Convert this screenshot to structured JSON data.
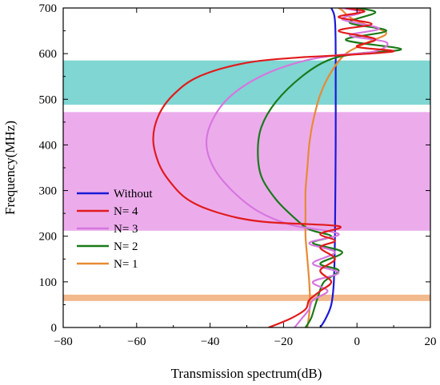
{
  "chart_data": {
    "type": "line",
    "xlabel": "Transmission spectrum(dB)",
    "ylabel": "Frequency(MHz)",
    "xlim": [
      -80,
      20
    ],
    "ylim": [
      0,
      700
    ],
    "xticks": [
      -80,
      -60,
      -40,
      -20,
      0,
      20
    ],
    "yticks": [
      0,
      100,
      200,
      300,
      400,
      500,
      600,
      700
    ],
    "grid": false,
    "legend_position": "middle-left",
    "bands": [
      {
        "y0": 488,
        "y1": 585,
        "color": "#7fd6d3"
      },
      {
        "y0": 212,
        "y1": 472,
        "color": "#ecacec"
      },
      {
        "y0": 58,
        "y1": 72,
        "color": "#f2b98c"
      }
    ],
    "series": [
      {
        "name": "Without",
        "color": "#1a1ad6",
        "points": [
          [
            -10,
            0
          ],
          [
            -8.5,
            20
          ],
          [
            -7,
            50
          ],
          [
            -6.3,
            100
          ],
          [
            -6,
            200
          ],
          [
            -5.8,
            400
          ],
          [
            -5.8,
            600
          ],
          [
            -5.9,
            660
          ],
          [
            -6.2,
            685
          ],
          [
            -7,
            700
          ]
        ]
      },
      {
        "name": "N= 4",
        "color": "#e11b1b",
        "points": [
          [
            -24,
            0
          ],
          [
            -18,
            20
          ],
          [
            -14,
            40
          ],
          [
            -13,
            60
          ],
          [
            -10,
            80
          ],
          [
            -7,
            100
          ],
          [
            -10,
            125
          ],
          [
            -6,
            150
          ],
          [
            -10,
            175
          ],
          [
            -6,
            190
          ],
          [
            -10,
            205
          ],
          [
            -5,
            222
          ],
          [
            -26,
            232
          ],
          [
            -38,
            252
          ],
          [
            -46,
            280
          ],
          [
            -51,
            320
          ],
          [
            -54,
            360
          ],
          [
            -55.5,
            413
          ],
          [
            -54,
            465
          ],
          [
            -50,
            510
          ],
          [
            -43,
            550
          ],
          [
            -30,
            580
          ],
          [
            -15,
            592
          ],
          [
            -5,
            596
          ],
          [
            10,
            605
          ],
          [
            0,
            615
          ],
          [
            5,
            632
          ],
          [
            -5,
            650
          ],
          [
            4,
            665
          ],
          [
            -5,
            680
          ],
          [
            2,
            692
          ],
          [
            -3,
            700
          ]
        ]
      },
      {
        "name": "N= 3",
        "color": "#d676de",
        "points": [
          [
            -17,
            0
          ],
          [
            -15,
            20
          ],
          [
            -13,
            40
          ],
          [
            -12,
            60
          ],
          [
            -8,
            80
          ],
          [
            -12,
            100
          ],
          [
            -5,
            120
          ],
          [
            -12,
            140
          ],
          [
            -6,
            165
          ],
          [
            -13,
            185
          ],
          [
            -5,
            205
          ],
          [
            -18,
            225
          ],
          [
            -27,
            255
          ],
          [
            -34,
            300
          ],
          [
            -39,
            350
          ],
          [
            -41,
            405
          ],
          [
            -39,
            460
          ],
          [
            -34,
            510
          ],
          [
            -25,
            555
          ],
          [
            -14,
            585
          ],
          [
            -5,
            597
          ],
          [
            5,
            605
          ],
          [
            8,
            625
          ],
          [
            -2,
            640
          ],
          [
            6,
            655
          ],
          [
            -4,
            675
          ],
          [
            1,
            690
          ],
          [
            -4,
            700
          ]
        ]
      },
      {
        "name": "N= 2",
        "color": "#1a7a1a",
        "points": [
          [
            -14,
            0
          ],
          [
            -12.5,
            20
          ],
          [
            -11.5,
            45
          ],
          [
            -10.5,
            70
          ],
          [
            -9,
            100
          ],
          [
            -5,
            125
          ],
          [
            -10,
            140
          ],
          [
            -4,
            165
          ],
          [
            -12,
            185
          ],
          [
            -7,
            200
          ],
          [
            -13,
            215
          ],
          [
            -17,
            240
          ],
          [
            -22,
            280
          ],
          [
            -26,
            330
          ],
          [
            -27,
            385
          ],
          [
            -26,
            440
          ],
          [
            -22,
            495
          ],
          [
            -15,
            550
          ],
          [
            -8,
            585
          ],
          [
            0,
            600
          ],
          [
            12,
            610
          ],
          [
            -3,
            630
          ],
          [
            8,
            650
          ],
          [
            -2,
            668
          ],
          [
            5,
            690
          ],
          [
            0,
            700
          ]
        ]
      },
      {
        "name": "N= 1",
        "color": "#e88a34",
        "points": [
          [
            -13.5,
            0
          ],
          [
            -13,
            30
          ],
          [
            -12.8,
            60
          ],
          [
            -13,
            100
          ],
          [
            -13.5,
            150
          ],
          [
            -14,
            200
          ],
          [
            -14,
            250
          ],
          [
            -14,
            300
          ],
          [
            -13.5,
            350
          ],
          [
            -13,
            400
          ],
          [
            -12,
            450
          ],
          [
            -10,
            510
          ],
          [
            -7,
            560
          ],
          [
            -3,
            600
          ],
          [
            3,
            625
          ],
          [
            8,
            645
          ],
          [
            2,
            665
          ],
          [
            -2,
            680
          ],
          [
            -4,
            695
          ],
          [
            -5,
            700
          ]
        ]
      }
    ]
  }
}
